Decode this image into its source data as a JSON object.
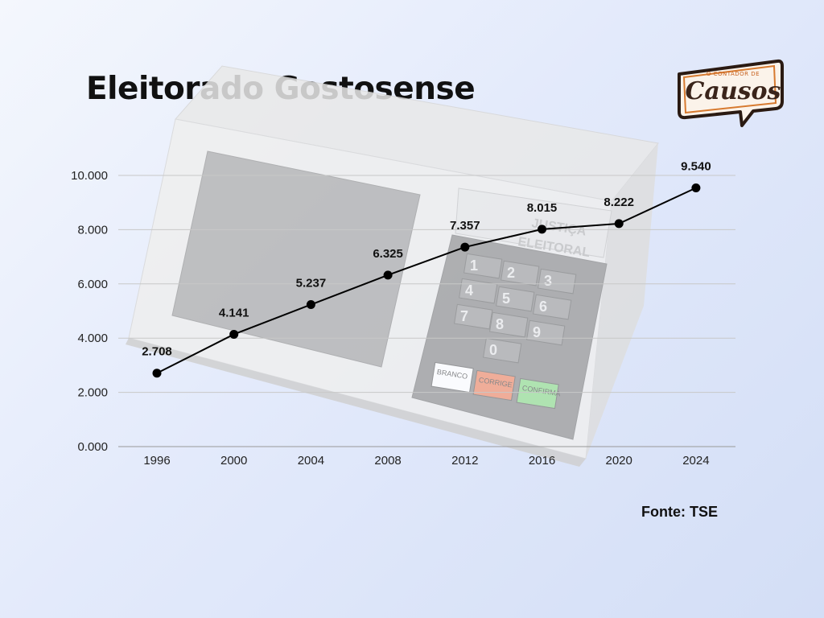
{
  "title": "Eleitorado Gostosense",
  "source": "Fonte: TSE",
  "logo": {
    "small_text": "O CONTADOR DE",
    "big_text": "Causos"
  },
  "background_image": {
    "top_label_line1": "JUSTIÇA",
    "top_label_line2": "ELEITORAL",
    "keys": [
      "1",
      "2",
      "3",
      "4",
      "5",
      "6",
      "7",
      "8",
      "9",
      "0"
    ],
    "buttons": [
      "BRANCO",
      "CORRIGE",
      "CONFIRMA"
    ]
  },
  "chart_data": {
    "type": "line",
    "title": "Eleitorado Gostosense",
    "xlabel": "",
    "ylabel": "",
    "categories": [
      "1996",
      "2000",
      "2004",
      "2008",
      "2012",
      "2016",
      "2020",
      "2024"
    ],
    "values": [
      2708,
      4141,
      5237,
      6325,
      7357,
      8015,
      8222,
      9540
    ],
    "data_labels": [
      "2.708",
      "4.141",
      "5.237",
      "6.325",
      "7.357",
      "8.015",
      "8.222",
      "9.540"
    ],
    "yticks": [
      0,
      2000,
      4000,
      6000,
      8000,
      10000
    ],
    "ytick_labels": [
      "0.000",
      "2.000",
      "4.000",
      "6.000",
      "8.000",
      "10.000"
    ],
    "ylim": [
      0,
      10000
    ],
    "grid": true,
    "line_color": "#000000",
    "marker_color": "#000000"
  }
}
